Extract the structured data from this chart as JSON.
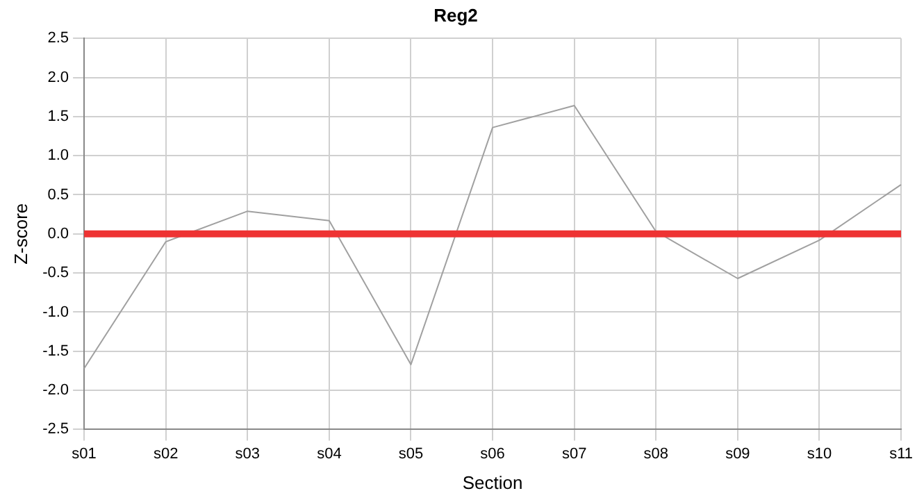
{
  "chart_data": {
    "type": "line",
    "title": "Reg2",
    "xlabel": "Section",
    "ylabel": "Z-score",
    "categories": [
      "s01",
      "s02",
      "s03",
      "s04",
      "s05",
      "s06",
      "s07",
      "s08",
      "s09",
      "s10",
      "s11"
    ],
    "series": [
      {
        "color": "#a0a0a0",
        "values": [
          -1.72,
          -0.1,
          0.29,
          0.17,
          -1.67,
          1.36,
          1.64,
          0.03,
          -0.57,
          -0.08,
          0.63
        ]
      }
    ],
    "ylim": [
      -2.5,
      2.5
    ],
    "yticks": [
      {
        "value": -2.5,
        "label": "-2.5"
      },
      {
        "value": -2,
        "label": "-2.0"
      },
      {
        "value": -1.5,
        "label": "-1.5"
      },
      {
        "value": -1,
        "label": "-1.0"
      },
      {
        "value": -0.5,
        "label": "-0.5"
      },
      {
        "value": 0,
        "label": "0.0"
      },
      {
        "value": 0.5,
        "label": "0.5"
      },
      {
        "value": 1,
        "label": "1.0"
      },
      {
        "value": 1.5,
        "label": "1.5"
      },
      {
        "value": 2,
        "label": "2.0"
      },
      {
        "value": 2.5,
        "label": "2.5"
      }
    ],
    "ref_lines": [
      {
        "axis": "y",
        "value": 0,
        "color": "#ee3333"
      }
    ],
    "grid": true,
    "legend": false,
    "marker": "none",
    "line_style": "solid"
  }
}
